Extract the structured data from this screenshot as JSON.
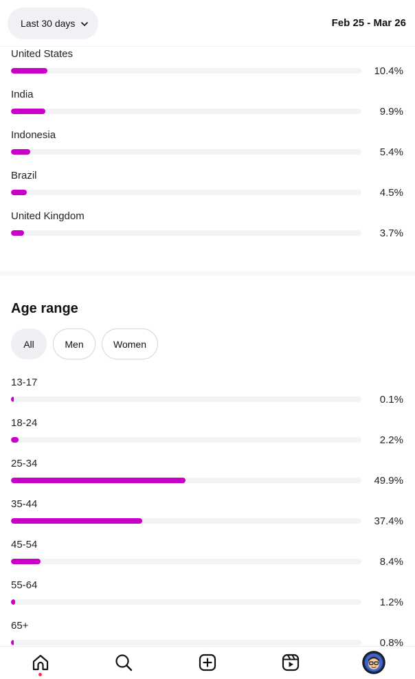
{
  "header": {
    "range_label": "Last 30 days",
    "range_icon": "chevron-down-icon",
    "date_range": "Feb 25 - Mar 26"
  },
  "countries": [
    {
      "label": "United States",
      "percent": "10.4%",
      "value": 10.4
    },
    {
      "label": "India",
      "percent": "9.9%",
      "value": 9.9
    },
    {
      "label": "Indonesia",
      "percent": "5.4%",
      "value": 5.4
    },
    {
      "label": "Brazil",
      "percent": "4.5%",
      "value": 4.5
    },
    {
      "label": "United Kingdom",
      "percent": "3.7%",
      "value": 3.7
    }
  ],
  "age": {
    "title": "Age range",
    "filters": [
      {
        "label": "All",
        "active": true
      },
      {
        "label": "Men",
        "active": false
      },
      {
        "label": "Women",
        "active": false
      }
    ],
    "rows": [
      {
        "label": "13-17",
        "percent": "0.1%",
        "value": 0.1
      },
      {
        "label": "18-24",
        "percent": "2.2%",
        "value": 2.2
      },
      {
        "label": "25-34",
        "percent": "49.9%",
        "value": 49.9
      },
      {
        "label": "35-44",
        "percent": "37.4%",
        "value": 37.4
      },
      {
        "label": "45-54",
        "percent": "8.4%",
        "value": 8.4
      },
      {
        "label": "55-64",
        "percent": "1.2%",
        "value": 1.2
      },
      {
        "label": "65+",
        "percent": "0.8%",
        "value": 0.8
      }
    ]
  },
  "colors": {
    "bar_fill": "#c800c8",
    "bar_track": "#f2f3f5",
    "notification_dot": "#ff3040"
  },
  "nav": [
    {
      "icon": "home-icon",
      "notification": true
    },
    {
      "icon": "search-icon",
      "notification": false
    },
    {
      "icon": "create-icon",
      "notification": false
    },
    {
      "icon": "reels-icon",
      "notification": false
    },
    {
      "icon": "profile-avatar-icon",
      "notification": false
    }
  ]
}
